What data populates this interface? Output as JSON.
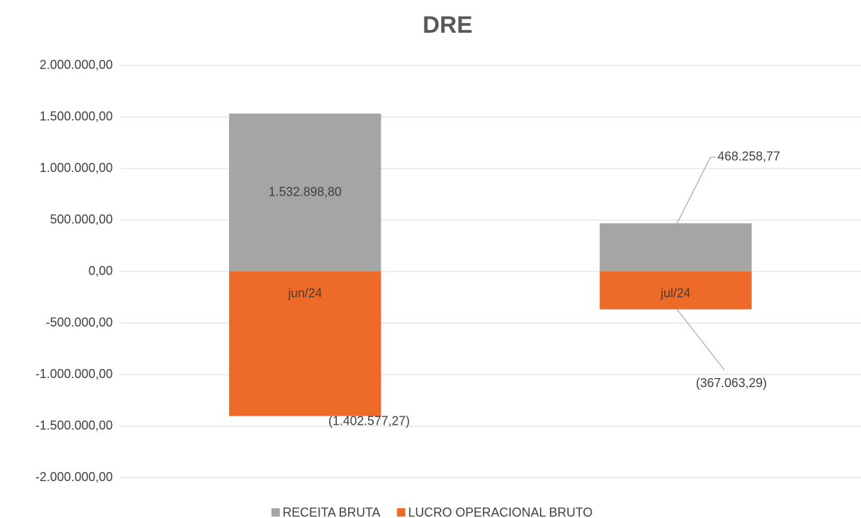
{
  "chart_data": {
    "type": "bar",
    "title": "DRE",
    "categories": [
      "jun/24",
      "jul/24"
    ],
    "series": [
      {
        "name": "RECEITA BRUTA",
        "color": "#a5a5a5",
        "values": [
          1532898.8,
          468258.77
        ],
        "value_labels": [
          "1.532.898,80",
          "468.258,77"
        ]
      },
      {
        "name": "LUCRO OPERACIONAL BRUTO",
        "color": "#ee6a28",
        "values": [
          -1402577.27,
          -367063.29
        ],
        "value_labels": [
          "(1.402.577,27)",
          "(367.063,29)"
        ]
      }
    ],
    "ylim": [
      -2000000,
      2000000
    ],
    "yticks": [
      {
        "value": -2000000,
        "label": "-2.000.000,00"
      },
      {
        "value": -1500000,
        "label": "-1.500.000,00"
      },
      {
        "value": -1000000,
        "label": "-1.000.000,00"
      },
      {
        "value": -500000,
        "label": "-500.000,00"
      },
      {
        "value": 0,
        "label": "0,00"
      },
      {
        "value": 500000,
        "label": "500.000,00"
      },
      {
        "value": 1000000,
        "label": "1.000.000,00"
      },
      {
        "value": 1500000,
        "label": "1.500.000,00"
      },
      {
        "value": 2000000,
        "label": "2.000.000,00"
      }
    ],
    "grid": true
  }
}
